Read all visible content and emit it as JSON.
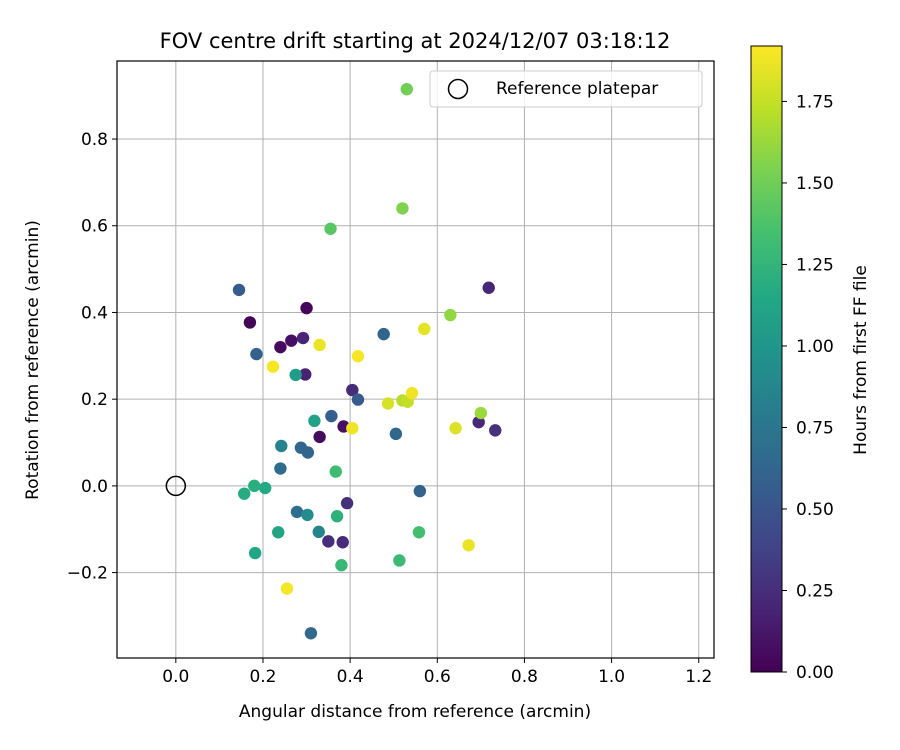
{
  "chart_data": {
    "type": "scatter",
    "title": "FOV centre drift starting at 2024/12/07 03:18:12",
    "xlabel": "Angular distance from reference (arcmin)",
    "ylabel": "Rotation from reference (arcmin)",
    "xlim": [
      -0.135,
      1.235
    ],
    "ylim": [
      -0.397,
      0.98
    ],
    "xticks": [
      "0.0",
      "0.2",
      "0.4",
      "0.6",
      "0.8",
      "1.0",
      "1.2"
    ],
    "yticks": [
      "−0.2",
      "0.0",
      "0.2",
      "0.4",
      "0.6",
      "0.8"
    ],
    "grid": true,
    "legend": {
      "label": "Reference platepar",
      "placement": "top-right"
    },
    "colorbar": {
      "label": "Hours from first FF file",
      "range": [
        0.0,
        1.92
      ],
      "ticks": [
        "0.00",
        "0.25",
        "0.50",
        "0.75",
        "1.00",
        "1.25",
        "1.50",
        "1.75"
      ],
      "colormap": "viridis"
    },
    "reference_point": {
      "x": 0.0,
      "y": 0.0
    },
    "points": [
      {
        "x": 0.17,
        "y": 0.377,
        "t": 0.02
      },
      {
        "x": 0.3,
        "y": 0.41,
        "t": 0.03
      },
      {
        "x": 0.24,
        "y": 0.32,
        "t": 0.05
      },
      {
        "x": 0.265,
        "y": 0.335,
        "t": 0.08
      },
      {
        "x": 0.33,
        "y": 0.113,
        "t": 0.06
      },
      {
        "x": 0.385,
        "y": 0.137,
        "t": 0.09
      },
      {
        "x": 0.297,
        "y": 0.257,
        "t": 0.18
      },
      {
        "x": 0.292,
        "y": 0.341,
        "t": 0.2
      },
      {
        "x": 0.405,
        "y": 0.221,
        "t": 0.24
      },
      {
        "x": 0.393,
        "y": -0.04,
        "t": 0.26
      },
      {
        "x": 0.35,
        "y": -0.128,
        "t": 0.25
      },
      {
        "x": 0.383,
        "y": -0.13,
        "t": 0.23
      },
      {
        "x": 0.695,
        "y": 0.147,
        "t": 0.22
      },
      {
        "x": 0.718,
        "y": 0.457,
        "t": 0.21
      },
      {
        "x": 0.733,
        "y": 0.128,
        "t": 0.27
      },
      {
        "x": 0.145,
        "y": 0.452,
        "t": 0.55
      },
      {
        "x": 0.185,
        "y": 0.304,
        "t": 0.6
      },
      {
        "x": 0.418,
        "y": 0.199,
        "t": 0.55
      },
      {
        "x": 0.357,
        "y": 0.161,
        "t": 0.58
      },
      {
        "x": 0.303,
        "y": 0.077,
        "t": 0.62
      },
      {
        "x": 0.287,
        "y": 0.088,
        "t": 0.63
      },
      {
        "x": 0.24,
        "y": 0.04,
        "t": 0.68
      },
      {
        "x": 0.278,
        "y": -0.06,
        "t": 0.69
      },
      {
        "x": 0.31,
        "y": -0.34,
        "t": 0.65
      },
      {
        "x": 0.477,
        "y": 0.35,
        "t": 0.62
      },
      {
        "x": 0.505,
        "y": 0.12,
        "t": 0.64
      },
      {
        "x": 0.56,
        "y": -0.012,
        "t": 0.6
      },
      {
        "x": 0.242,
        "y": 0.092,
        "t": 0.85
      },
      {
        "x": 0.328,
        "y": -0.106,
        "t": 0.86
      },
      {
        "x": 0.302,
        "y": -0.067,
        "t": 0.92
      },
      {
        "x": 0.275,
        "y": 0.256,
        "t": 1.05
      },
      {
        "x": 0.318,
        "y": 0.15,
        "t": 1.1
      },
      {
        "x": 0.235,
        "y": -0.107,
        "t": 1.12
      },
      {
        "x": 0.182,
        "y": -0.155,
        "t": 1.14
      },
      {
        "x": 0.205,
        "y": -0.005,
        "t": 1.16
      },
      {
        "x": 0.18,
        "y": 0.0,
        "t": 1.2
      },
      {
        "x": 0.157,
        "y": -0.018,
        "t": 1.18
      },
      {
        "x": 0.37,
        "y": -0.07,
        "t": 1.22
      },
      {
        "x": 0.38,
        "y": -0.183,
        "t": 1.28
      },
      {
        "x": 0.513,
        "y": -0.172,
        "t": 1.3
      },
      {
        "x": 0.558,
        "y": -0.107,
        "t": 1.33
      },
      {
        "x": 0.367,
        "y": 0.033,
        "t": 1.32
      },
      {
        "x": 0.355,
        "y": 0.593,
        "t": 1.42
      },
      {
        "x": 0.52,
        "y": 0.64,
        "t": 1.55
      },
      {
        "x": 0.53,
        "y": 0.915,
        "t": 1.5
      },
      {
        "x": 0.63,
        "y": 0.394,
        "t": 1.6
      },
      {
        "x": 0.7,
        "y": 0.168,
        "t": 1.63
      },
      {
        "x": 0.52,
        "y": 0.197,
        "t": 1.72
      },
      {
        "x": 0.532,
        "y": 0.194,
        "t": 1.75
      },
      {
        "x": 0.487,
        "y": 0.19,
        "t": 1.8
      },
      {
        "x": 0.642,
        "y": 0.133,
        "t": 1.82
      },
      {
        "x": 0.57,
        "y": 0.362,
        "t": 1.84
      },
      {
        "x": 0.33,
        "y": 0.325,
        "t": 1.86
      },
      {
        "x": 0.542,
        "y": 0.214,
        "t": 1.88
      },
      {
        "x": 0.405,
        "y": 0.133,
        "t": 1.88
      },
      {
        "x": 0.418,
        "y": 0.299,
        "t": 1.9
      },
      {
        "x": 0.223,
        "y": 0.275,
        "t": 1.9
      },
      {
        "x": 0.672,
        "y": -0.137,
        "t": 1.86
      },
      {
        "x": 0.255,
        "y": -0.237,
        "t": 1.89
      }
    ]
  }
}
